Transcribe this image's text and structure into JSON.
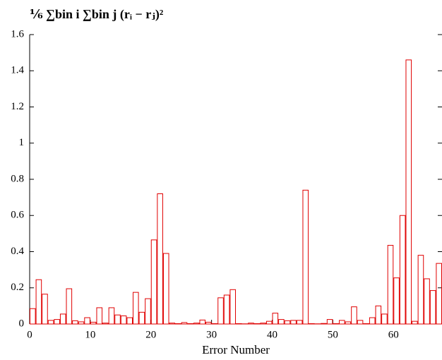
{
  "chart_data": {
    "type": "histogram",
    "title": "⅙ ∑bin i ∑bin j (rᵢ − rⱼ)²",
    "x_label": "Error Number",
    "bins": [
      0,
      1,
      2,
      3,
      4,
      5,
      6,
      7,
      8,
      9,
      10,
      11,
      12,
      13,
      14,
      15,
      16,
      17,
      18,
      19,
      20,
      21,
      22,
      23,
      24,
      25,
      26,
      27,
      28,
      29,
      30,
      31,
      32,
      33,
      34,
      35,
      36,
      37,
      38,
      39,
      40,
      41,
      42,
      43,
      44,
      45,
      46,
      47,
      48,
      49,
      50,
      51,
      52,
      53,
      54,
      55,
      56,
      57,
      58,
      59,
      60,
      61,
      62,
      63,
      64,
      65,
      66,
      67,
      68
    ],
    "values": [
      0.085,
      0.245,
      0.165,
      0.02,
      0.025,
      0.055,
      0.195,
      0.018,
      0.012,
      0.035,
      0.01,
      0.09,
      0.005,
      0.09,
      0.05,
      0.045,
      0.035,
      0.175,
      0.065,
      0.14,
      0.465,
      0.72,
      0.39,
      0.005,
      0.002,
      0.008,
      0.002,
      0.005,
      0.022,
      0.01,
      0.002,
      0.145,
      0.16,
      0.19,
      0.002,
      0.001,
      0.005,
      0.002,
      0.005,
      0.015,
      0.06,
      0.025,
      0.018,
      0.02,
      0.02,
      0.74,
      0.002,
      0.001,
      0.003,
      0.025,
      0.002,
      0.02,
      0.012,
      0.095,
      0.02,
      0.002,
      0.035,
      0.1,
      0.055,
      0.435,
      0.255,
      0.6,
      1.46,
      0.015,
      0.38,
      0.25,
      0.185,
      0.335
    ],
    "color": "#e00000",
    "xlim": [
      0,
      68
    ],
    "xticks": [
      0,
      10,
      20,
      30,
      40,
      50,
      60
    ],
    "ylim": [
      0,
      1.6
    ],
    "yticks": [
      0,
      0.2,
      0.4,
      0.6,
      0.8,
      1,
      1.2,
      1.4,
      1.6
    ]
  }
}
